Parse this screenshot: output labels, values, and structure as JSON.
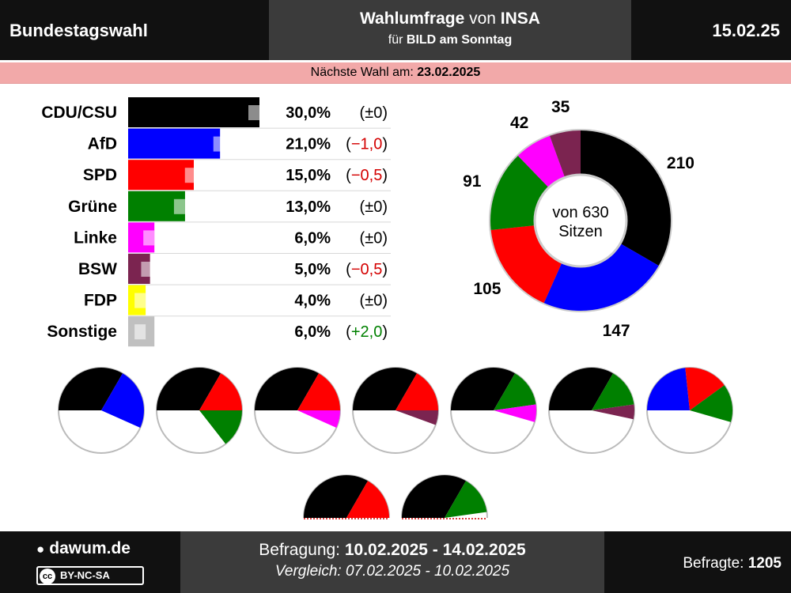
{
  "header": {
    "left": "Bundestagswahl",
    "title_bold": "Wahlumfrage",
    "title_von": " von ",
    "title_inst": "INSA",
    "sub_fuer": "für ",
    "sub_client": "BILD am Sonntag",
    "date": "15.02.25"
  },
  "next_election": {
    "label": "Nächste Wahl am: ",
    "date": "23.02.2025"
  },
  "footer": {
    "logo": "dawum.de",
    "license": "BY-NC-SA",
    "license_icon": "cc",
    "survey_label": "Befragung: ",
    "survey_range": "10.02.2025 - 14.02.2025",
    "compare": "Vergleich: 07.02.2025 - 10.02.2025",
    "respondents_label": "Befragte: ",
    "respondents": "1205"
  },
  "chart_data": [
    {
      "type": "bar",
      "categories": [
        "CDU/CSU",
        "AfD",
        "SPD",
        "Grüne",
        "Linke",
        "BSW",
        "FDP",
        "Sonstige"
      ],
      "values": [
        30.0,
        21.0,
        15.0,
        13.0,
        6.0,
        5.0,
        4.0,
        6.0
      ],
      "previous": [
        30.0,
        22.0,
        15.5,
        13.0,
        6.0,
        5.5,
        4.0,
        4.0
      ],
      "value_labels": [
        "30,0%",
        "21,0%",
        "15,0%",
        "13,0%",
        "6,0%",
        "5,0%",
        "4,0%",
        "6,0%"
      ],
      "changes": [
        "±0",
        "−1,0",
        "−0,5",
        "±0",
        "±0",
        "−0,5",
        "±0",
        "+2,0"
      ],
      "change_signs": [
        0,
        -1,
        -1,
        0,
        0,
        -1,
        0,
        1
      ],
      "colors": [
        "#000000",
        "#0000ff",
        "#ff0000",
        "#008000",
        "#ff00ff",
        "#7b2450",
        "#ffff00",
        "#c0c0c0"
      ],
      "xlim": [
        0,
        30
      ]
    },
    {
      "type": "pie",
      "title": "von 630 Sitzen",
      "title_lines": [
        "von 630",
        "Sitzen"
      ],
      "labels": [
        "CDU/CSU",
        "AfD",
        "SPD",
        "Grüne",
        "Linke",
        "BSW"
      ],
      "values": [
        210,
        147,
        105,
        91,
        42,
        35
      ],
      "colors": [
        "#000000",
        "#0000ff",
        "#ff0000",
        "#008000",
        "#ff00ff",
        "#7b2450"
      ]
    },
    {
      "type": "pie",
      "description": "Koalitions-Halbkreise",
      "coalitions": [
        {
          "parties": [
            "CDU/CSU",
            "AfD"
          ],
          "seats": [
            210,
            147
          ]
        },
        {
          "parties": [
            "CDU/CSU",
            "SPD",
            "Grüne"
          ],
          "seats": [
            210,
            105,
            91
          ]
        },
        {
          "parties": [
            "CDU/CSU",
            "SPD",
            "Linke"
          ],
          "seats": [
            210,
            105,
            42
          ]
        },
        {
          "parties": [
            "CDU/CSU",
            "SPD",
            "BSW"
          ],
          "seats": [
            210,
            105,
            35
          ]
        },
        {
          "parties": [
            "CDU/CSU",
            "Grüne",
            "Linke"
          ],
          "seats": [
            210,
            91,
            42
          ]
        },
        {
          "parties": [
            "CDU/CSU",
            "Grüne",
            "BSW"
          ],
          "seats": [
            210,
            91,
            35
          ]
        },
        {
          "parties": [
            "AfD",
            "SPD",
            "Grüne"
          ],
          "seats": [
            147,
            105,
            91
          ]
        },
        {
          "parties": [
            "CDU/CSU",
            "SPD"
          ],
          "seats": [
            210,
            105
          ]
        },
        {
          "parties": [
            "CDU/CSU",
            "Grüne"
          ],
          "seats": [
            210,
            91
          ]
        }
      ],
      "total": 630
    }
  ]
}
